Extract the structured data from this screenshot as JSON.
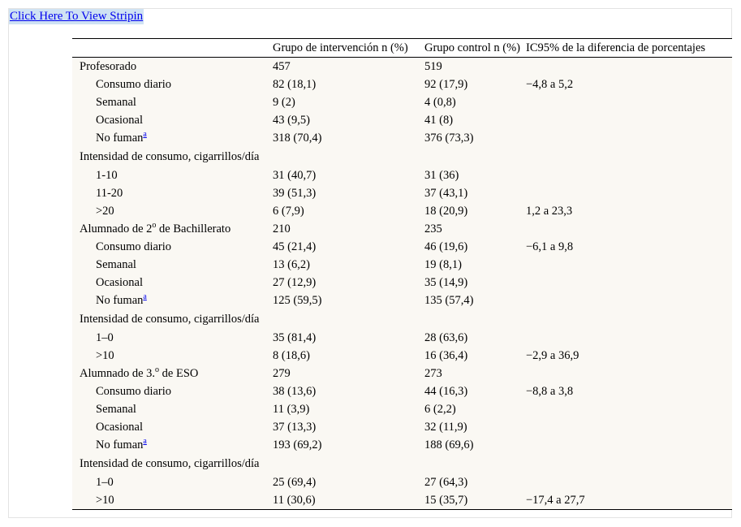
{
  "link": {
    "label": "Click Here To View Stripin"
  },
  "table": {
    "headers": [
      "",
      "Grupo de intervención n (%)",
      "Grupo control n (%)",
      "IC95% de la diferencia de porcentajes"
    ],
    "footnote_mark": "a",
    "rows": [
      {
        "label": "Profesorado",
        "indent": false,
        "g1": "457",
        "g2": "519",
        "ci": ""
      },
      {
        "label": "Consumo diario",
        "indent": true,
        "g1": "82 (18,1)",
        "g2": "92 (17,9)",
        "ci": "−4,8 a 5,2"
      },
      {
        "label": "Semanal",
        "indent": true,
        "g1": "9 (2)",
        "g2": "4 (0,8)",
        "ci": ""
      },
      {
        "label": "Ocasional",
        "indent": true,
        "g1": "43 (9,5)",
        "g2": "41 (8)",
        "ci": ""
      },
      {
        "label": "No fuman",
        "indent": true,
        "sup": true,
        "g1": "318 (70,4)",
        "g2": "376 (73,3)",
        "ci": ""
      },
      {
        "label": "Intensidad de consumo, cigarrillos/día",
        "indent": false,
        "g1": "",
        "g2": "",
        "ci": ""
      },
      {
        "label": "1-10",
        "indent": true,
        "g1": "31 (40,7)",
        "g2": "31 (36)",
        "ci": ""
      },
      {
        "label": "11-20",
        "indent": true,
        "g1": "39 (51,3)",
        "g2": "37 (43,1)",
        "ci": ""
      },
      {
        "label": ">20",
        "indent": true,
        "g1": "6 (7,9)",
        "g2": "18 (20,9)",
        "ci": "1,2 a 23,3"
      },
      {
        "label": "Alumnado de 2",
        "sup_text": "o",
        "label_after": " de Bachillerato",
        "indent": false,
        "g1": "210",
        "g2": "235",
        "ci": ""
      },
      {
        "label": "Consumo diario",
        "indent": true,
        "g1": "45 (21,4)",
        "g2": "46 (19,6)",
        "ci": "−6,1 a 9,8"
      },
      {
        "label": "Semanal",
        "indent": true,
        "g1": "13 (6,2)",
        "g2": "19 (8,1)",
        "ci": ""
      },
      {
        "label": "Ocasional",
        "indent": true,
        "g1": "27 (12,9)",
        "g2": "35 (14,9)",
        "ci": ""
      },
      {
        "label": "No fuman",
        "indent": true,
        "sup": true,
        "g1": "125 (59,5)",
        "g2": "135 (57,4)",
        "ci": ""
      },
      {
        "label": "Intensidad de consumo, cigarrillos/día",
        "indent": false,
        "g1": "",
        "g2": "",
        "ci": ""
      },
      {
        "label": "1–0",
        "indent": true,
        "g1": "35 (81,4)",
        "g2": "28 (63,6)",
        "ci": ""
      },
      {
        "label": ">10",
        "indent": true,
        "g1": "8 (18,6)",
        "g2": "16 (36,4)",
        "ci": "−2,9 a 36,9"
      },
      {
        "label": "Alumnado de 3.",
        "sup_text": "o",
        "label_after": " de ESO",
        "indent": false,
        "g1": "279",
        "g2": "273",
        "ci": ""
      },
      {
        "label": "Consumo diario",
        "indent": true,
        "g1": "38 (13,6)",
        "g2": "44 (16,3)",
        "ci": "−8,8 a 3,8"
      },
      {
        "label": "Semanal",
        "indent": true,
        "g1": "11 (3,9)",
        "g2": "6 (2,2)",
        "ci": ""
      },
      {
        "label": "Ocasional",
        "indent": true,
        "g1": "37 (13,3)",
        "g2": "32 (11,9)",
        "ci": ""
      },
      {
        "label": "No fuman",
        "indent": true,
        "sup": true,
        "g1": "193 (69,2)",
        "g2": "188 (69,6)",
        "ci": ""
      },
      {
        "label": "Intensidad de consumo, cigarrillos/día",
        "indent": false,
        "g1": "",
        "g2": "",
        "ci": ""
      },
      {
        "label": "1–0",
        "indent": true,
        "g1": "25 (69,4)",
        "g2": "27 (64,3)",
        "ci": ""
      },
      {
        "label": ">10",
        "indent": true,
        "g1": "11 (30,6)",
        "g2": "15 (35,7)",
        "ci": "−17,4 a 27,7"
      }
    ]
  }
}
